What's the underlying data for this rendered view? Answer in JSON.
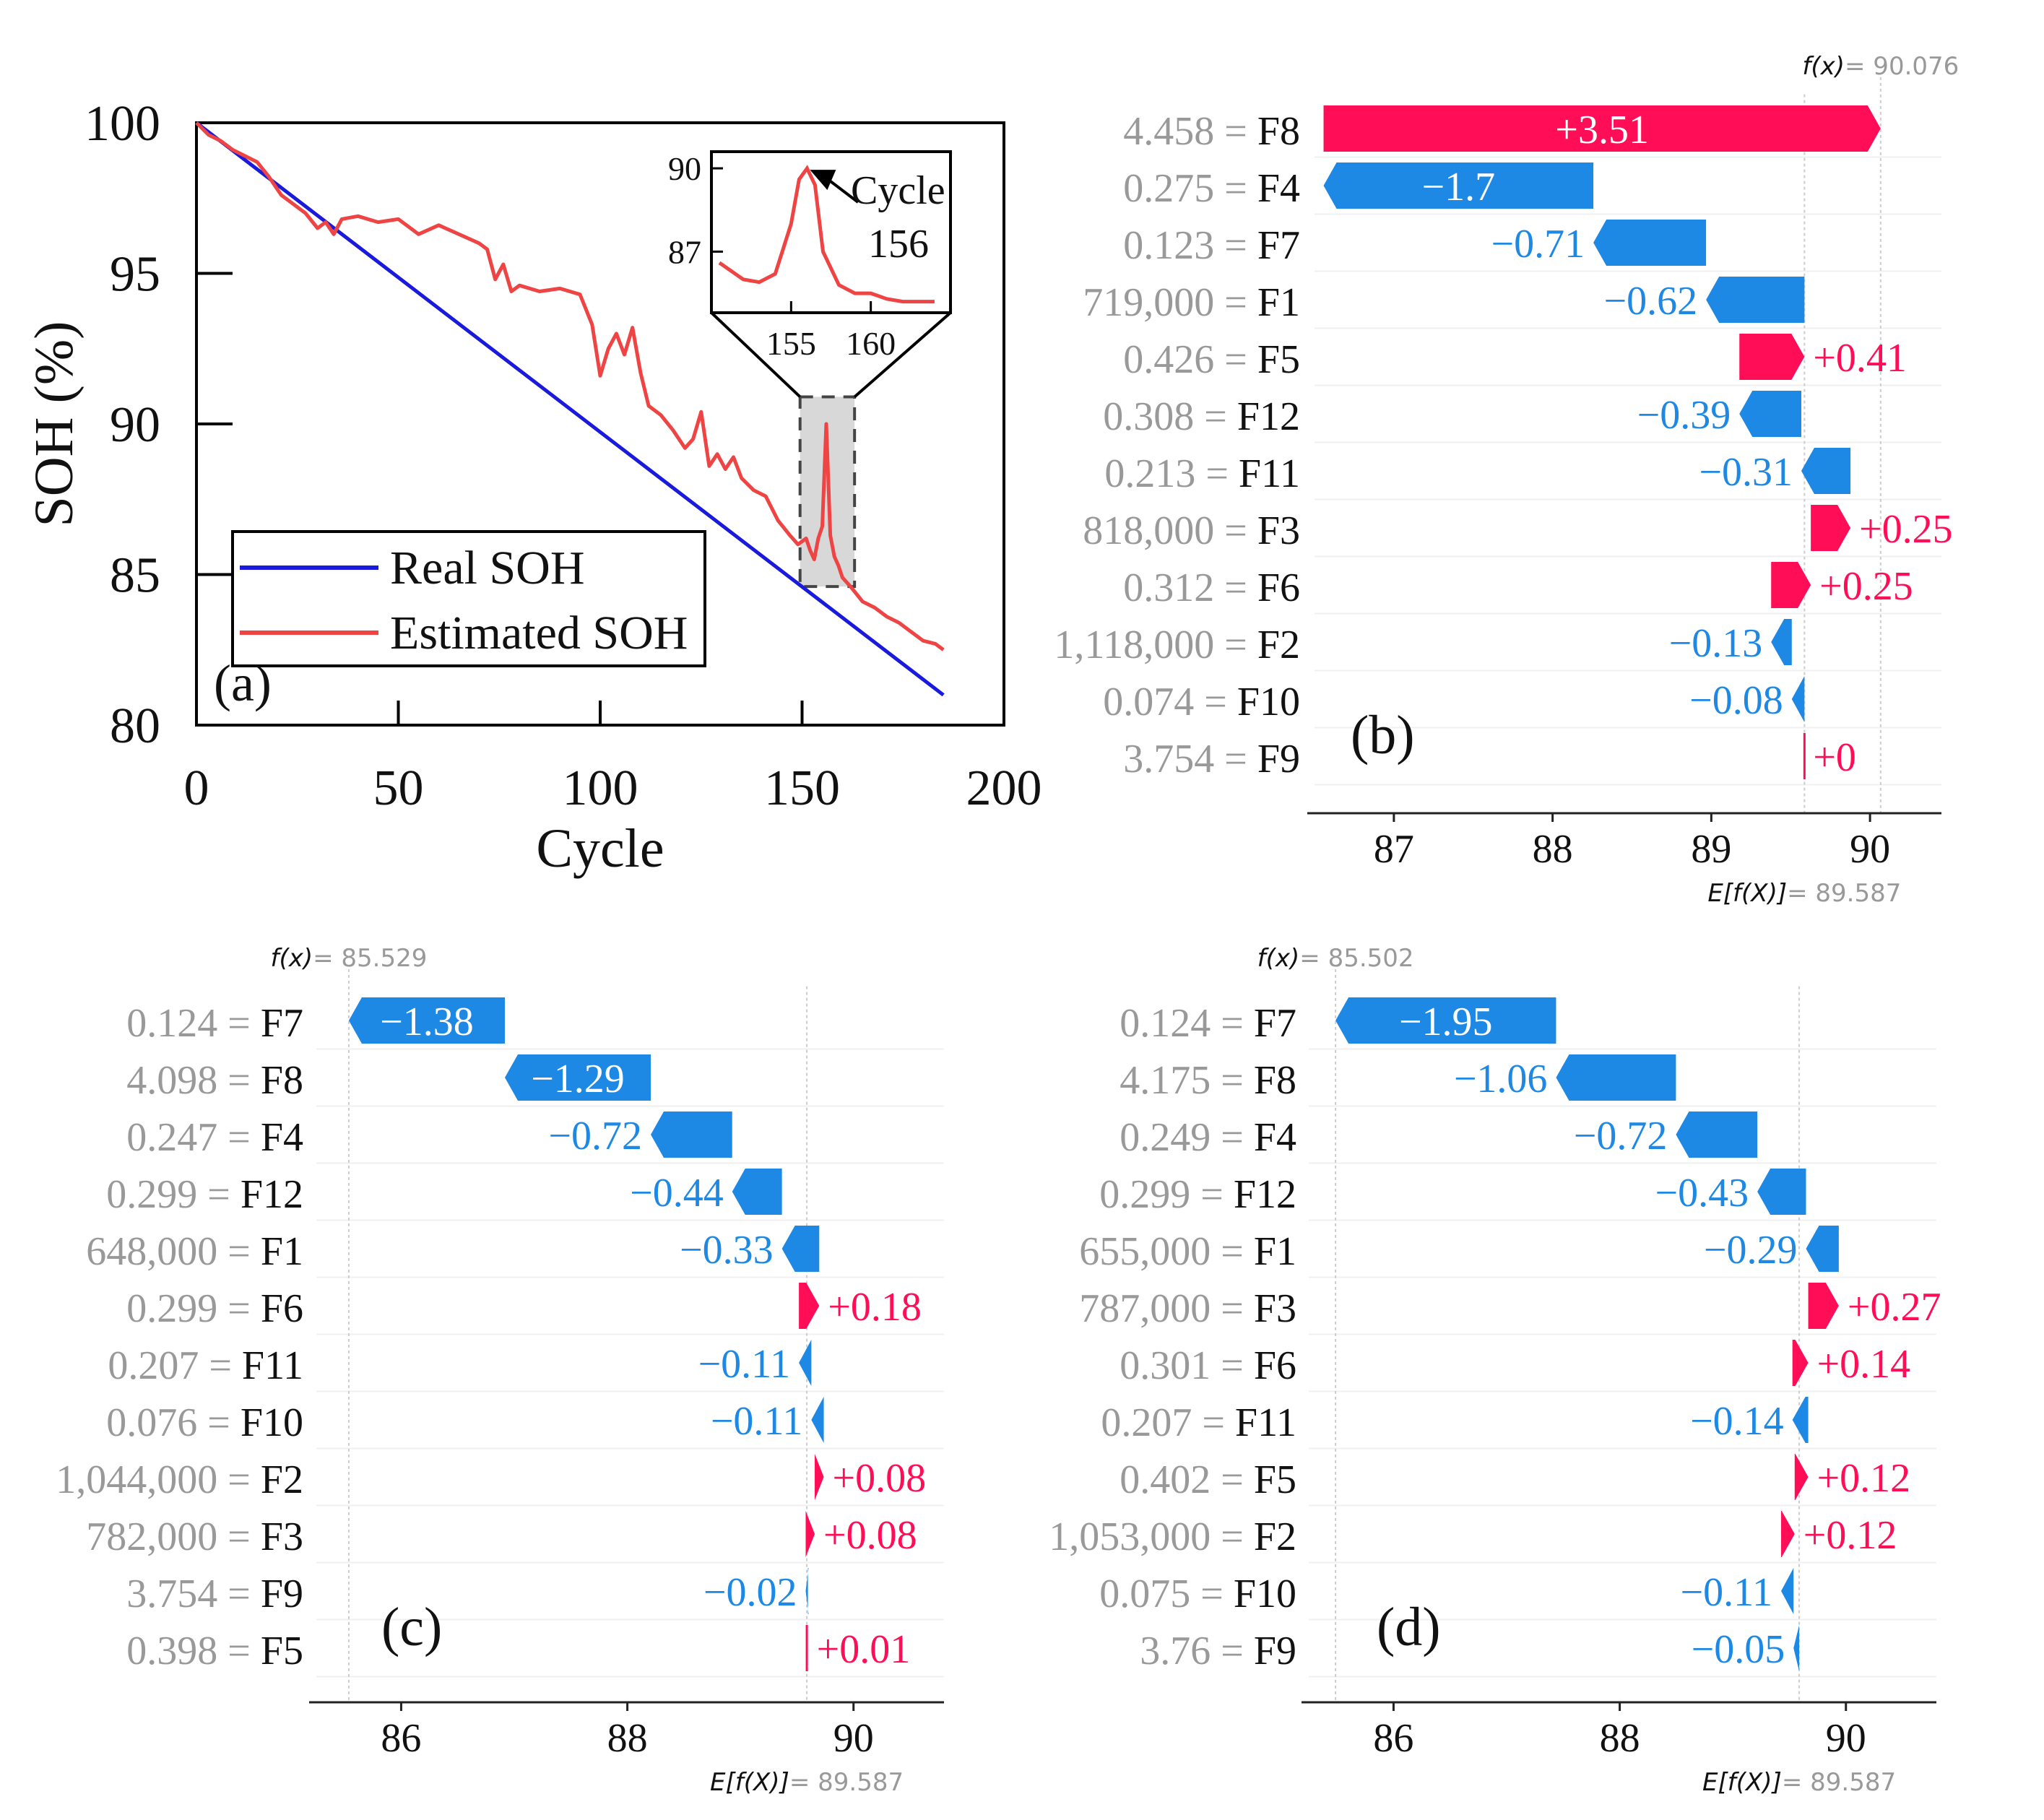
{
  "chart_data": [
    {
      "panel": "(a)",
      "type": "line",
      "xlabel": "Cycle",
      "ylabel": "SOH (%)",
      "xlim": [
        0,
        200
      ],
      "ylim": [
        80,
        100
      ],
      "xticks": [
        "0",
        "50",
        "100",
        "150",
        "200"
      ],
      "yticks": [
        "80",
        "85",
        "90",
        "95",
        "100"
      ],
      "legend": {
        "position": "bottom-left",
        "entries": [
          "Real SOH",
          "Estimated SOH"
        ]
      },
      "series": [
        {
          "name": "Real SOH",
          "color": "#1a1adc",
          "x": [
            0,
            185
          ],
          "y": [
            100,
            81.0
          ]
        },
        {
          "name": "Estimated SOH",
          "color": "#ee4444",
          "x": [
            0,
            3,
            6,
            9,
            12,
            15,
            18,
            21,
            24,
            27,
            30,
            32,
            34,
            36,
            40,
            45,
            50,
            55,
            60,
            65,
            70,
            72,
            74,
            76,
            78,
            80,
            85,
            90,
            95,
            98,
            100,
            102,
            104,
            106,
            108,
            110,
            112,
            115,
            118,
            121,
            123,
            125,
            127,
            129,
            131,
            133,
            135,
            138,
            141,
            144,
            147,
            149,
            151,
            152,
            153,
            154,
            155,
            156,
            157,
            158,
            159,
            160,
            162,
            165,
            168,
            171,
            174,
            177,
            180,
            183,
            185
          ],
          "y": [
            100,
            99.6,
            99.4,
            99.1,
            98.9,
            98.7,
            98.2,
            97.6,
            97.3,
            97.0,
            96.5,
            96.7,
            96.3,
            96.8,
            96.9,
            96.7,
            96.8,
            96.3,
            96.6,
            96.3,
            96.0,
            95.8,
            94.8,
            95.3,
            94.4,
            94.6,
            94.4,
            94.5,
            94.3,
            93.3,
            91.6,
            92.5,
            93.0,
            92.3,
            93.2,
            91.7,
            90.6,
            90.3,
            89.8,
            89.2,
            89.5,
            90.4,
            88.6,
            89.0,
            88.5,
            88.9,
            88.2,
            87.8,
            87.6,
            86.8,
            86.3,
            86.0,
            86.2,
            85.8,
            85.5,
            86.2,
            86.6,
            90.0,
            86.3,
            85.6,
            85.3,
            84.9,
            84.6,
            84.1,
            83.9,
            83.6,
            83.4,
            83.1,
            82.8,
            82.7,
            82.5
          ]
        }
      ],
      "inset": {
        "xticks": [
          "155",
          "160"
        ],
        "yticks": [
          "90",
          "87"
        ],
        "annotation": "Cycle 156",
        "annotation_line1": "Cycle",
        "annotation_line2": "156",
        "x": [
          150.5,
          152,
          153,
          154,
          155,
          155.5,
          156,
          156.5,
          157,
          158,
          159,
          160,
          161,
          162,
          164
        ],
        "y": [
          86.6,
          86.0,
          85.9,
          86.2,
          88.0,
          89.6,
          90.0,
          89.4,
          87.0,
          85.8,
          85.5,
          85.5,
          85.3,
          85.2,
          85.2
        ]
      }
    },
    {
      "panel": "(b)",
      "type": "bar",
      "subtype": "waterfall",
      "fx_label": "f(x)",
      "fx_value": "= 90.076",
      "ex_label": "E[f(X)]",
      "ex_value": "= 89.587",
      "base": 89.587,
      "xlim": [
        86.5,
        90.45
      ],
      "xticks": [
        87,
        88,
        89,
        90
      ],
      "rows": [
        {
          "value": "4.458",
          "feature": "F8",
          "contrib": 3.51,
          "label": "+3.51"
        },
        {
          "value": "0.275",
          "feature": "F4",
          "contrib": -1.7,
          "label": "−1.7"
        },
        {
          "value": "0.123",
          "feature": "F7",
          "contrib": -0.71,
          "label": "−0.71"
        },
        {
          "value": "719,000",
          "feature": "F1",
          "contrib": -0.62,
          "label": "−0.62"
        },
        {
          "value": "0.426",
          "feature": "F5",
          "contrib": 0.41,
          "label": "+0.41"
        },
        {
          "value": "0.308",
          "feature": "F12",
          "contrib": -0.39,
          "label": "−0.39"
        },
        {
          "value": "0.213",
          "feature": "F11",
          "contrib": -0.31,
          "label": "−0.31"
        },
        {
          "value": "818,000",
          "feature": "F3",
          "contrib": 0.25,
          "label": "+0.25"
        },
        {
          "value": "0.312",
          "feature": "F6",
          "contrib": 0.25,
          "label": "+0.25"
        },
        {
          "value": "1,118,000",
          "feature": "F2",
          "contrib": -0.13,
          "label": "−0.13"
        },
        {
          "value": "0.074",
          "feature": "F10",
          "contrib": -0.08,
          "label": "−0.08"
        },
        {
          "value": "3.754",
          "feature": "F9",
          "contrib": 0.0,
          "label": "+0"
        }
      ]
    },
    {
      "panel": "(c)",
      "type": "bar",
      "subtype": "waterfall",
      "fx_label": "f(x)",
      "fx_value": "= 85.529",
      "ex_label": "E[f(X)]",
      "ex_value": "= 89.587",
      "base": 89.587,
      "xlim": [
        85.25,
        90.8
      ],
      "xticks": [
        86,
        88,
        90
      ],
      "rows": [
        {
          "value": "0.124",
          "feature": "F7",
          "contrib": -1.38,
          "label": "−1.38"
        },
        {
          "value": "4.098",
          "feature": "F8",
          "contrib": -1.29,
          "label": "−1.29"
        },
        {
          "value": "0.247",
          "feature": "F4",
          "contrib": -0.72,
          "label": "−0.72"
        },
        {
          "value": "0.299",
          "feature": "F12",
          "contrib": -0.44,
          "label": "−0.44"
        },
        {
          "value": "648,000",
          "feature": "F1",
          "contrib": -0.33,
          "label": "−0.33"
        },
        {
          "value": "0.299",
          "feature": "F6",
          "contrib": 0.18,
          "label": "+0.18"
        },
        {
          "value": "0.207",
          "feature": "F11",
          "contrib": -0.11,
          "label": "−0.11"
        },
        {
          "value": "0.076",
          "feature": "F10",
          "contrib": -0.11,
          "label": "−0.11"
        },
        {
          "value": "1,044,000",
          "feature": "F2",
          "contrib": 0.08,
          "label": "+0.08"
        },
        {
          "value": "782,000",
          "feature": "F3",
          "contrib": 0.08,
          "label": "+0.08"
        },
        {
          "value": "3.754",
          "feature": "F9",
          "contrib": -0.02,
          "label": "−0.02"
        },
        {
          "value": "0.398",
          "feature": "F5",
          "contrib": 0.01,
          "label": "+0.01"
        }
      ]
    },
    {
      "panel": "(d)",
      "type": "bar",
      "subtype": "waterfall",
      "fx_label": "f(x)",
      "fx_value": "= 85.502",
      "ex_label": "E[f(X)]",
      "ex_value": "= 89.587",
      "base": 89.587,
      "xlim": [
        85.25,
        90.8
      ],
      "xticks": [
        86,
        88,
        90
      ],
      "rows": [
        {
          "value": "0.124",
          "feature": "F7",
          "contrib": -1.95,
          "label": "−1.95"
        },
        {
          "value": "4.175",
          "feature": "F8",
          "contrib": -1.06,
          "label": "−1.06"
        },
        {
          "value": "0.249",
          "feature": "F4",
          "contrib": -0.72,
          "label": "−0.72"
        },
        {
          "value": "0.299",
          "feature": "F12",
          "contrib": -0.43,
          "label": "−0.43"
        },
        {
          "value": "655,000",
          "feature": "F1",
          "contrib": -0.29,
          "label": "−0.29"
        },
        {
          "value": "787,000",
          "feature": "F3",
          "contrib": 0.27,
          "label": "+0.27"
        },
        {
          "value": "0.301",
          "feature": "F6",
          "contrib": 0.14,
          "label": "+0.14"
        },
        {
          "value": "0.207",
          "feature": "F11",
          "contrib": -0.14,
          "label": "−0.14"
        },
        {
          "value": "0.402",
          "feature": "F5",
          "contrib": 0.12,
          "label": "+0.12"
        },
        {
          "value": "1,053,000",
          "feature": "F2",
          "contrib": 0.12,
          "label": "+0.12"
        },
        {
          "value": "0.075",
          "feature": "F10",
          "contrib": -0.11,
          "label": "−0.11"
        },
        {
          "value": "3.76",
          "feature": "F9",
          "contrib": -0.05,
          "label": "−0.05"
        }
      ]
    }
  ],
  "colors": {
    "positive": "#ff0d57",
    "negative": "#1e88e5",
    "real": "#1a1adc",
    "estimated": "#ee4444"
  }
}
